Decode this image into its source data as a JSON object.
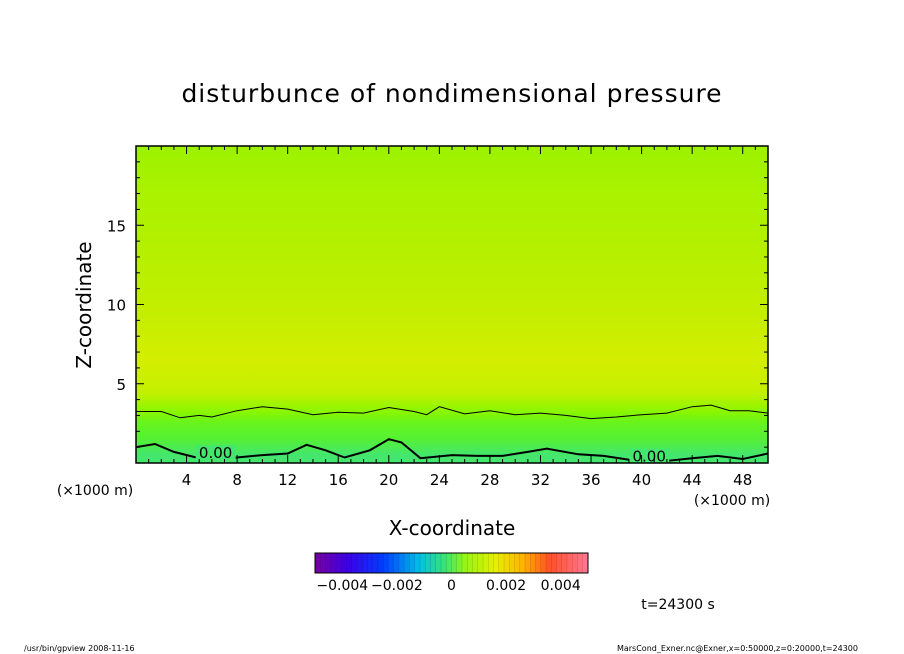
{
  "chart_data": {
    "type": "heatmap",
    "title": "disturbunce of nondimensional pressure",
    "xlabel": "X-coordinate",
    "ylabel": "Z-coordinate",
    "x_unit": "(×1000 m)",
    "y_unit": "(×1000 m)",
    "xlim": [
      0,
      50
    ],
    "ylim": [
      0,
      20
    ],
    "x_ticks": [
      4,
      8,
      12,
      16,
      20,
      24,
      28,
      32,
      36,
      40,
      44,
      48
    ],
    "y_ticks": [
      5,
      10,
      15
    ],
    "contour_labels": [
      {
        "text": "0.00",
        "x": 6.3,
        "z": 0.3
      },
      {
        "text": "0.00",
        "x": 40.6,
        "z": 0.1
      }
    ],
    "contour_levels": [
      0.0005,
      0.0
    ],
    "contour_zero_z": [
      [
        0,
        1.0
      ],
      [
        1.5,
        1.2
      ],
      [
        3,
        0.7
      ],
      [
        5,
        0.3
      ],
      [
        8,
        0.35
      ],
      [
        10,
        0.5
      ],
      [
        12,
        0.6
      ],
      [
        13.5,
        1.15
      ],
      [
        15,
        0.8
      ],
      [
        16.5,
        0.35
      ],
      [
        18.5,
        0.8
      ],
      [
        20,
        1.5
      ],
      [
        21,
        1.3
      ],
      [
        22.5,
        0.3
      ],
      [
        25,
        0.5
      ],
      [
        27,
        0.45
      ],
      [
        29,
        0.45
      ],
      [
        31,
        0.7
      ],
      [
        32.5,
        0.9
      ],
      [
        35,
        0.55
      ],
      [
        37,
        0.45
      ],
      [
        39,
        0.2
      ],
      [
        41,
        0.05
      ],
      [
        44,
        0.3
      ],
      [
        46,
        0.45
      ],
      [
        48,
        0.25
      ],
      [
        50,
        0.6
      ]
    ],
    "contour_upper_z": [
      [
        0,
        3.25
      ],
      [
        2,
        3.25
      ],
      [
        3.5,
        2.85
      ],
      [
        5,
        3.0
      ],
      [
        6,
        2.9
      ],
      [
        8,
        3.3
      ],
      [
        10,
        3.55
      ],
      [
        12,
        3.4
      ],
      [
        14,
        3.05
      ],
      [
        16,
        3.2
      ],
      [
        18,
        3.15
      ],
      [
        20,
        3.5
      ],
      [
        22,
        3.25
      ],
      [
        23,
        3.05
      ],
      [
        24,
        3.55
      ],
      [
        26,
        3.1
      ],
      [
        28,
        3.3
      ],
      [
        30,
        3.05
      ],
      [
        32,
        3.15
      ],
      [
        34,
        3.0
      ],
      [
        36,
        2.8
      ],
      [
        38,
        2.9
      ],
      [
        40,
        3.05
      ],
      [
        42,
        3.15
      ],
      [
        44,
        3.55
      ],
      [
        45.5,
        3.65
      ],
      [
        47,
        3.3
      ],
      [
        48.5,
        3.3
      ],
      [
        50,
        3.15
      ]
    ],
    "field_bands": [
      {
        "z": 0.5,
        "color": "#44e66e"
      },
      {
        "z": 1.5,
        "color": "#55f036"
      },
      {
        "z": 2.5,
        "color": "#66f41e"
      },
      {
        "z": 3.2,
        "color": "#88f600"
      },
      {
        "z": 4.5,
        "color": "#c4f000"
      },
      {
        "z": 6.5,
        "color": "#d4ee00"
      },
      {
        "z": 9.0,
        "color": "#c6ee00"
      },
      {
        "z": 13.0,
        "color": "#b6f000"
      },
      {
        "z": 17.0,
        "color": "#aaf200"
      },
      {
        "z": 20.0,
        "color": "#9cf200"
      }
    ],
    "colorbar": {
      "range": [
        -0.005,
        0.005
      ],
      "tick_labels": [
        "−0.004",
        "−0.002",
        "0",
        "0.002",
        "0.004"
      ],
      "tick_values": [
        -0.004,
        -0.002,
        0,
        0.002,
        0.004
      ]
    }
  },
  "annotations": {
    "time": "t=24300 s",
    "footer_left": "/usr/bin/gpview   2008-11-16",
    "footer_right": "MarsCond_Exner.nc@Exner,x=0:50000,z=0:20000,t=24300"
  }
}
